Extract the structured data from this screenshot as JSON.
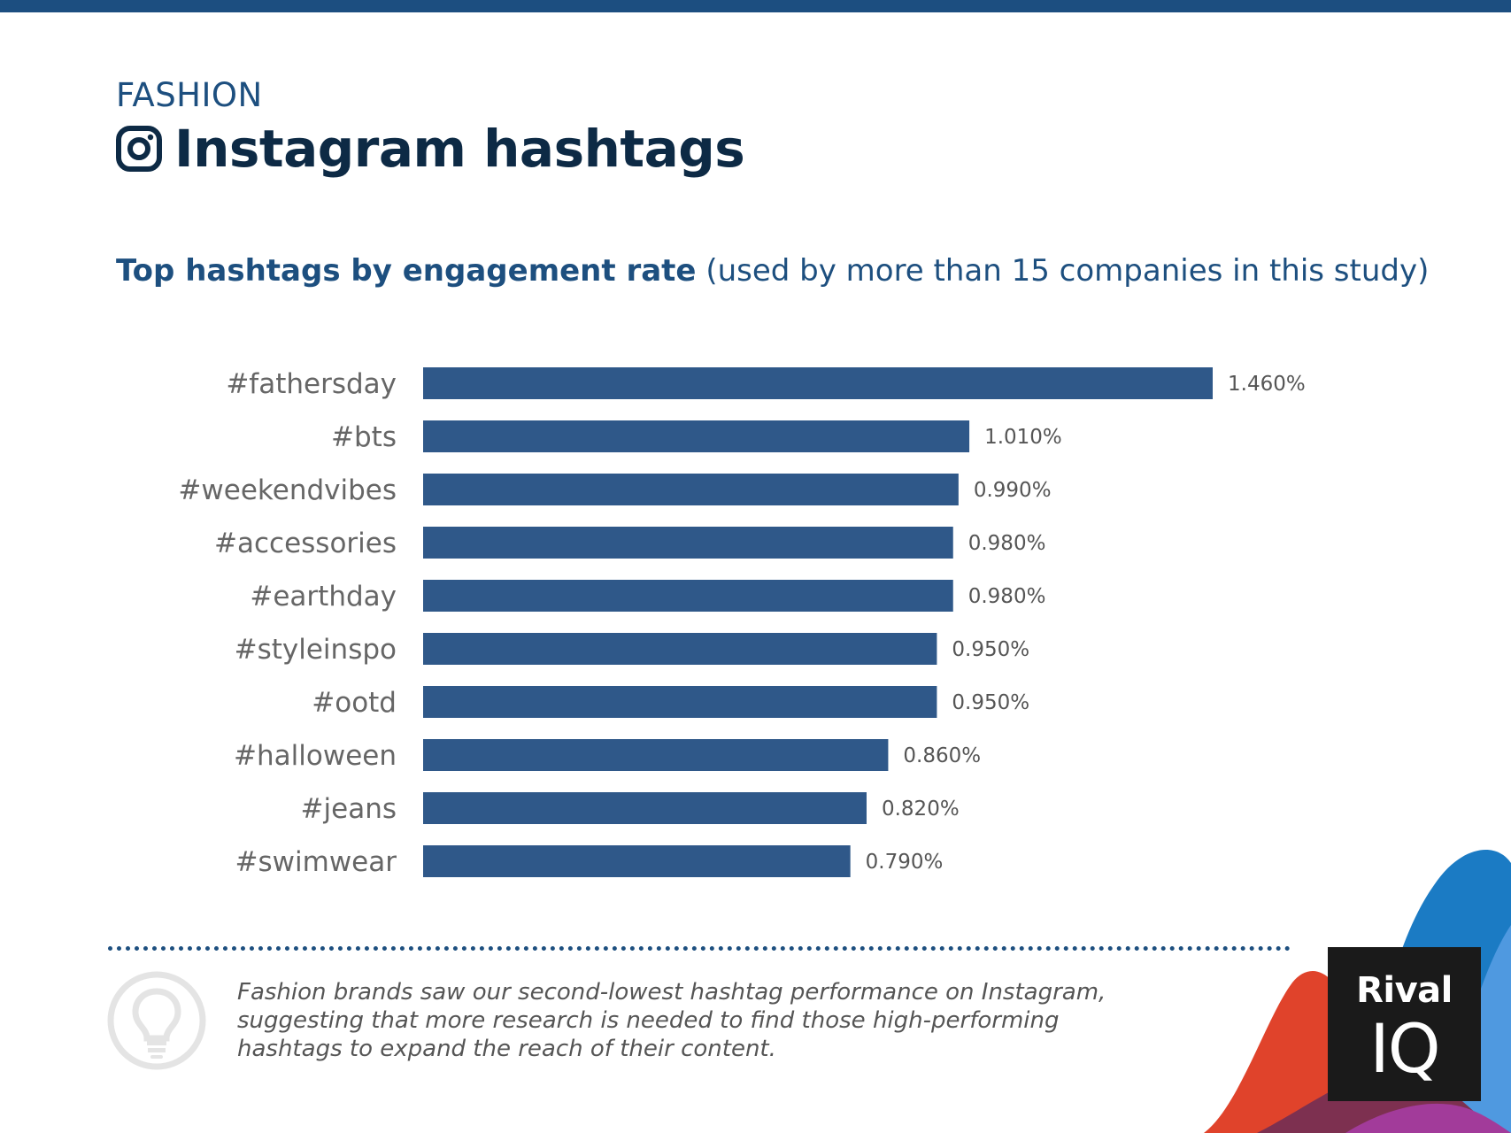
{
  "header": {
    "category": "FASHION",
    "title": "Instagram hashtags",
    "subtitle_bold": "Top hashtags by engagement rate",
    "subtitle_rest": "(used by more than 15 companies in this study)"
  },
  "chart_data": {
    "type": "bar",
    "orientation": "horizontal",
    "categories": [
      "#fathersday",
      "#bts",
      "#weekendvibes",
      "#accessories",
      "#earthday",
      "#styleinspo",
      "#ootd",
      "#halloween",
      "#jeans",
      "#swimwear"
    ],
    "values": [
      1.46,
      1.01,
      0.99,
      0.98,
      0.98,
      0.95,
      0.95,
      0.86,
      0.82,
      0.79
    ],
    "data_labels": [
      "1.460%",
      "1.010%",
      "0.990%",
      "0.980%",
      "0.980%",
      "0.950%",
      "0.950%",
      "0.860%",
      "0.820%",
      "0.790%"
    ],
    "xlim": [
      0,
      1.46
    ],
    "grid": false,
    "bar_color": "#2f5889"
  },
  "insight": {
    "text": "Fashion brands saw our second-lowest hashtag performance on Instagram, suggesting that more research is needed to find those high-performing hashtags to expand the reach of their content."
  },
  "logo": {
    "line1": "Rival",
    "line2": "IQ"
  },
  "icons": {
    "title_icon": "instagram-icon",
    "insight_icon": "lightbulb-icon"
  },
  "colors": {
    "brand_blue": "#1c4e80",
    "title_navy": "#0d2a45",
    "label_gray": "#666666"
  }
}
